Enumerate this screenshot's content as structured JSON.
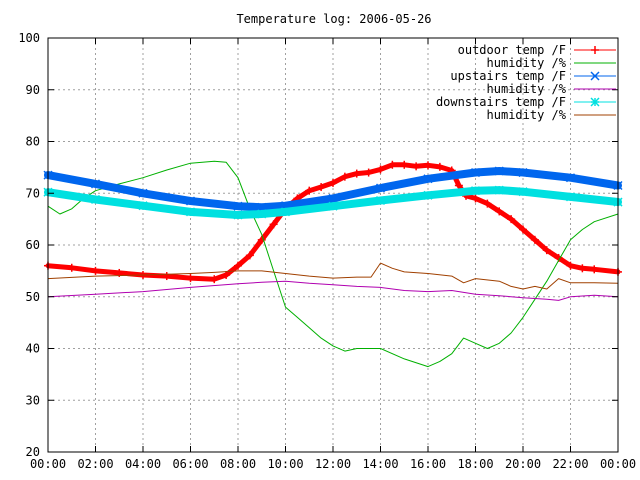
{
  "chart_data": {
    "type": "line",
    "title": "Temperature log: 2006-05-26",
    "xlabel": "",
    "ylabel": "",
    "xlim": [
      0,
      24
    ],
    "ylim": [
      20,
      100
    ],
    "grid": true,
    "legend_position": "top-right",
    "x_ticks": [
      "00:00",
      "02:00",
      "04:00",
      "06:00",
      "08:00",
      "10:00",
      "12:00",
      "14:00",
      "16:00",
      "18:00",
      "20:00",
      "22:00",
      "00:00"
    ],
    "y_ticks": [
      "20",
      "30",
      "40",
      "50",
      "60",
      "70",
      "80",
      "90",
      "100"
    ],
    "series": [
      {
        "name": "outdoor temp /F",
        "color": "#ff0000",
        "marker": "plus",
        "line_width": 5,
        "points": [
          [
            0,
            56
          ],
          [
            1,
            55.6
          ],
          [
            2,
            55
          ],
          [
            3,
            54.6
          ],
          [
            4,
            54.2
          ],
          [
            5,
            54
          ],
          [
            6,
            53.6
          ],
          [
            7,
            53.4
          ],
          [
            7.5,
            54.2
          ],
          [
            8,
            56
          ],
          [
            8.5,
            58
          ],
          [
            9,
            61
          ],
          [
            9.5,
            64
          ],
          [
            10,
            67
          ],
          [
            10.5,
            69
          ],
          [
            11,
            70.5
          ],
          [
            11.5,
            71.2
          ],
          [
            12,
            72
          ],
          [
            12.5,
            73.2
          ],
          [
            13,
            73.8
          ],
          [
            13.5,
            74
          ],
          [
            14,
            74.6
          ],
          [
            14.5,
            75.5
          ],
          [
            15,
            75.5
          ],
          [
            15.5,
            75.2
          ],
          [
            16,
            75.4
          ],
          [
            16.5,
            75.1
          ],
          [
            17,
            74.4
          ],
          [
            17.3,
            71.5
          ],
          [
            17.6,
            69.5
          ],
          [
            18,
            69
          ],
          [
            18.5,
            68
          ],
          [
            19,
            66.5
          ],
          [
            19.5,
            65
          ],
          [
            20,
            63
          ],
          [
            20.5,
            61
          ],
          [
            21,
            59
          ],
          [
            21.5,
            57.5
          ],
          [
            22,
            56
          ],
          [
            22.5,
            55.5
          ],
          [
            23,
            55.3
          ],
          [
            24,
            54.8
          ]
        ]
      },
      {
        "name": "humidity /%",
        "color": "#00b000",
        "marker": "none",
        "line_width": 1,
        "points": [
          [
            0,
            67.5
          ],
          [
            0.5,
            66
          ],
          [
            1,
            67
          ],
          [
            1.5,
            69
          ],
          [
            2,
            70.5
          ],
          [
            3,
            71.8
          ],
          [
            4,
            73
          ],
          [
            5,
            74.5
          ],
          [
            6,
            75.8
          ],
          [
            7,
            76.2
          ],
          [
            7.5,
            76
          ],
          [
            8,
            73
          ],
          [
            8.5,
            67
          ],
          [
            9,
            62
          ],
          [
            9.5,
            55
          ],
          [
            10,
            48
          ],
          [
            10.5,
            46
          ],
          [
            11,
            44
          ],
          [
            11.5,
            42
          ],
          [
            12,
            40.5
          ],
          [
            12.5,
            39.5
          ],
          [
            13,
            40
          ],
          [
            14,
            40
          ],
          [
            15,
            38
          ],
          [
            16,
            36.5
          ],
          [
            16.5,
            37.5
          ],
          [
            17,
            39
          ],
          [
            17.5,
            42
          ],
          [
            18,
            41
          ],
          [
            18.5,
            40
          ],
          [
            19,
            41
          ],
          [
            19.5,
            43
          ],
          [
            20,
            46
          ],
          [
            20.5,
            49.5
          ],
          [
            21,
            53
          ],
          [
            21.5,
            57
          ],
          [
            22,
            61
          ],
          [
            22.5,
            63
          ],
          [
            23,
            64.5
          ],
          [
            24,
            66
          ]
        ]
      },
      {
        "name": "upstairs temp /F",
        "color": "#0066ee",
        "marker": "cross",
        "line_width": 8,
        "points": [
          [
            0,
            73.5
          ],
          [
            2,
            71.8
          ],
          [
            4,
            70
          ],
          [
            6,
            68.5
          ],
          [
            8,
            67.5
          ],
          [
            9,
            67.3
          ],
          [
            10,
            67.6
          ],
          [
            12,
            69
          ],
          [
            14,
            71
          ],
          [
            16,
            72.8
          ],
          [
            18,
            74
          ],
          [
            19,
            74.3
          ],
          [
            20,
            74
          ],
          [
            22,
            73
          ],
          [
            24,
            71.5
          ]
        ]
      },
      {
        "name": "humidity /%",
        "color": "#b000b0",
        "marker": "none",
        "line_width": 1,
        "points": [
          [
            0,
            50
          ],
          [
            2,
            50.5
          ],
          [
            4,
            51
          ],
          [
            6,
            51.8
          ],
          [
            8,
            52.5
          ],
          [
            9,
            52.8
          ],
          [
            10,
            53
          ],
          [
            11,
            52.6
          ],
          [
            12,
            52.3
          ],
          [
            13,
            52
          ],
          [
            14,
            51.8
          ],
          [
            15,
            51.2
          ],
          [
            16,
            51
          ],
          [
            17,
            51.2
          ],
          [
            18,
            50.5
          ],
          [
            19,
            50.2
          ],
          [
            20,
            49.8
          ],
          [
            21,
            49.5
          ],
          [
            21.5,
            49.3
          ],
          [
            22,
            50
          ],
          [
            23,
            50.3
          ],
          [
            24,
            50
          ]
        ]
      },
      {
        "name": "downstairs temp /F",
        "color": "#00e0e0",
        "marker": "star",
        "line_width": 8,
        "points": [
          [
            0,
            70.2
          ],
          [
            2,
            68.8
          ],
          [
            4,
            67.6
          ],
          [
            6,
            66.4
          ],
          [
            8,
            65.8
          ],
          [
            9,
            66
          ],
          [
            10,
            66.4
          ],
          [
            12,
            67.5
          ],
          [
            14,
            68.6
          ],
          [
            16,
            69.6
          ],
          [
            18,
            70.5
          ],
          [
            19,
            70.6
          ],
          [
            20,
            70.3
          ],
          [
            22,
            69.3
          ],
          [
            24,
            68.3
          ]
        ]
      },
      {
        "name": "humidity /%",
        "color": "#a04000",
        "marker": "none",
        "line_width": 1,
        "points": [
          [
            0,
            53.5
          ],
          [
            2,
            54
          ],
          [
            4,
            54.2
          ],
          [
            6,
            54.5
          ],
          [
            7,
            54.7
          ],
          [
            8,
            55
          ],
          [
            9,
            55
          ],
          [
            10,
            54.5
          ],
          [
            11,
            54
          ],
          [
            12,
            53.6
          ],
          [
            13,
            53.8
          ],
          [
            13.6,
            53.8
          ],
          [
            14,
            56.5
          ],
          [
            14.5,
            55.5
          ],
          [
            15,
            54.8
          ],
          [
            16,
            54.5
          ],
          [
            17,
            54
          ],
          [
            17.5,
            52.7
          ],
          [
            18,
            53.5
          ],
          [
            19,
            53
          ],
          [
            19.5,
            52
          ],
          [
            20,
            51.5
          ],
          [
            20.5,
            52
          ],
          [
            21,
            51.5
          ],
          [
            21.5,
            53.5
          ],
          [
            22,
            52.7
          ],
          [
            23,
            52.7
          ],
          [
            24,
            52.6
          ]
        ]
      }
    ]
  }
}
